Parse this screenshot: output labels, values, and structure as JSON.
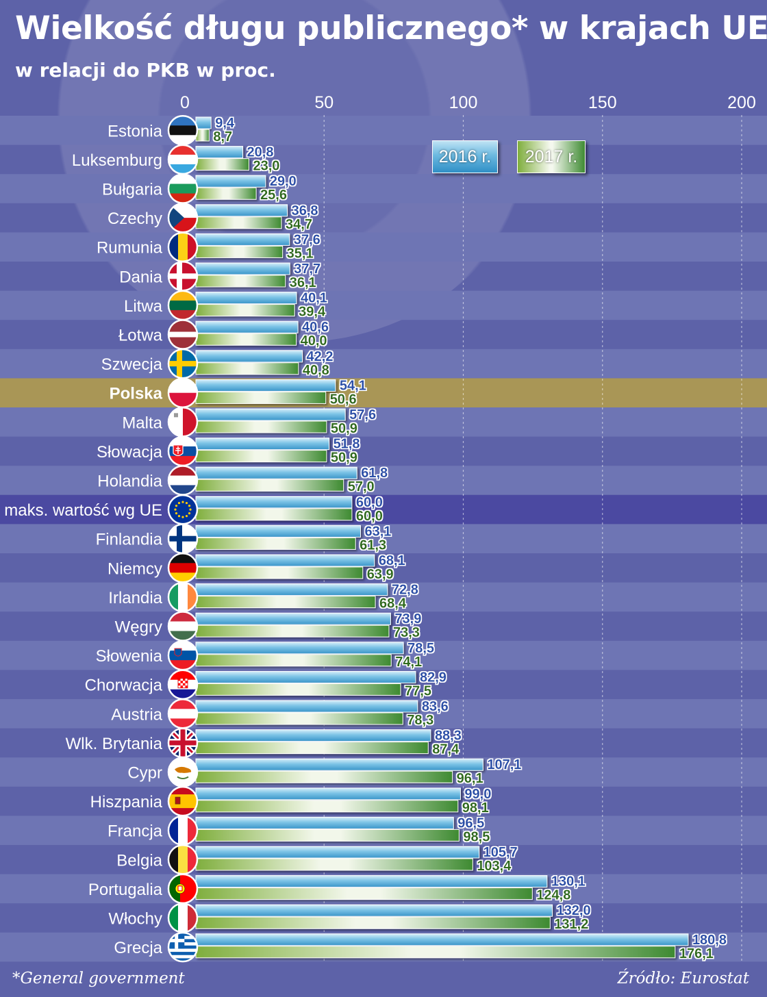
{
  "title": "Wielkość długu publicznego* w krajach UE",
  "subtitle": "w relacji do PKB w proc.",
  "footnote": "*General government",
  "source": "Źródło: Eurostat",
  "colors": {
    "background": "#5d62a8",
    "stripe": "#6e75b4",
    "highlight_poland": "#a99656",
    "highlight_eu": "#4b49a1",
    "bar_2016": "#6cb9e0",
    "bar_2017": "#8bbf4a"
  },
  "chart_data": {
    "type": "bar",
    "orientation": "horizontal",
    "xlim": [
      0,
      200
    ],
    "x_ticks": [
      0,
      50,
      100,
      150,
      200
    ],
    "grid": "dashed vertical",
    "legend_placement": "top-right",
    "categories": [
      "Estonia",
      "Luksemburg",
      "Bułgaria",
      "Czechy",
      "Rumunia",
      "Dania",
      "Litwa",
      "Łotwa",
      "Szwecja",
      "Polska",
      "Malta",
      "Słowacja",
      "Holandia",
      "maks. wartość wg UE",
      "Finlandia",
      "Niemcy",
      "Irlandia",
      "Węgry",
      "Słowenia",
      "Chorwacja",
      "Austria",
      "Wlk. Brytania",
      "Cypr",
      "Hiszpania",
      "Francja",
      "Belgia",
      "Portugalia",
      "Włochy",
      "Grecja"
    ],
    "flags": [
      "estonia-flag-icon",
      "luxembourg-flag-icon",
      "bulgaria-flag-icon",
      "czechia-flag-icon",
      "romania-flag-icon",
      "denmark-flag-icon",
      "lithuania-flag-icon",
      "latvia-flag-icon",
      "sweden-flag-icon",
      "poland-flag-icon",
      "malta-flag-icon",
      "slovakia-flag-icon",
      "netherlands-flag-icon",
      "eu-flag-icon",
      "finland-flag-icon",
      "germany-flag-icon",
      "ireland-flag-icon",
      "hungary-flag-icon",
      "slovenia-flag-icon",
      "croatia-flag-icon",
      "austria-flag-icon",
      "uk-flag-icon",
      "cyprus-flag-icon",
      "spain-flag-icon",
      "france-flag-icon",
      "belgium-flag-icon",
      "portugal-flag-icon",
      "italy-flag-icon",
      "greece-flag-icon"
    ],
    "highlighted": [
      "Polska",
      "maks. wartość wg UE"
    ],
    "series": [
      {
        "name": "2016 r.",
        "values": [
          9.4,
          20.8,
          29.0,
          36.8,
          37.6,
          37.7,
          40.1,
          40.6,
          42.2,
          54.1,
          57.6,
          51.8,
          61.8,
          60.0,
          63.1,
          68.1,
          72.8,
          73.9,
          78.5,
          82.9,
          83.6,
          88.3,
          107.1,
          99.0,
          96.5,
          105.7,
          130.1,
          132.0,
          180.8
        ],
        "labels": [
          "9,4",
          "20,8",
          "29,0",
          "36,8",
          "37,6",
          "37,7",
          "40,1",
          "40,6",
          "42,2",
          "54,1",
          "57,6",
          "51,8",
          "61,8",
          "60,0",
          "63,1",
          "68,1",
          "72,8",
          "73,9",
          "78,5",
          "82,9",
          "83,6",
          "88,3",
          "107,1",
          "99,0",
          "96,5",
          "105,7",
          "130,1",
          "132,0",
          "180,8"
        ]
      },
      {
        "name": "2017 r.",
        "values": [
          8.7,
          23.0,
          25.6,
          34.7,
          35.1,
          36.1,
          39.4,
          40.0,
          40.8,
          50.6,
          50.9,
          50.9,
          57.0,
          60.0,
          61.3,
          63.9,
          68.4,
          73.3,
          74.1,
          77.5,
          78.3,
          87.4,
          96.1,
          98.1,
          98.5,
          103.4,
          124.8,
          131.2,
          176.1
        ],
        "labels": [
          "8,7",
          "23,0",
          "25,6",
          "34,7",
          "35,1",
          "36,1",
          "39,4",
          "40,0",
          "40,8",
          "50,6",
          "50,9",
          "50,9",
          "57,0",
          "60,0",
          "61,3",
          "63,9",
          "68,4",
          "73,3",
          "74,1",
          "77,5",
          "78,3",
          "87,4",
          "96,1",
          "98,1",
          "98,5",
          "103,4",
          "124,8",
          "131,2",
          "176,1"
        ]
      }
    ]
  }
}
